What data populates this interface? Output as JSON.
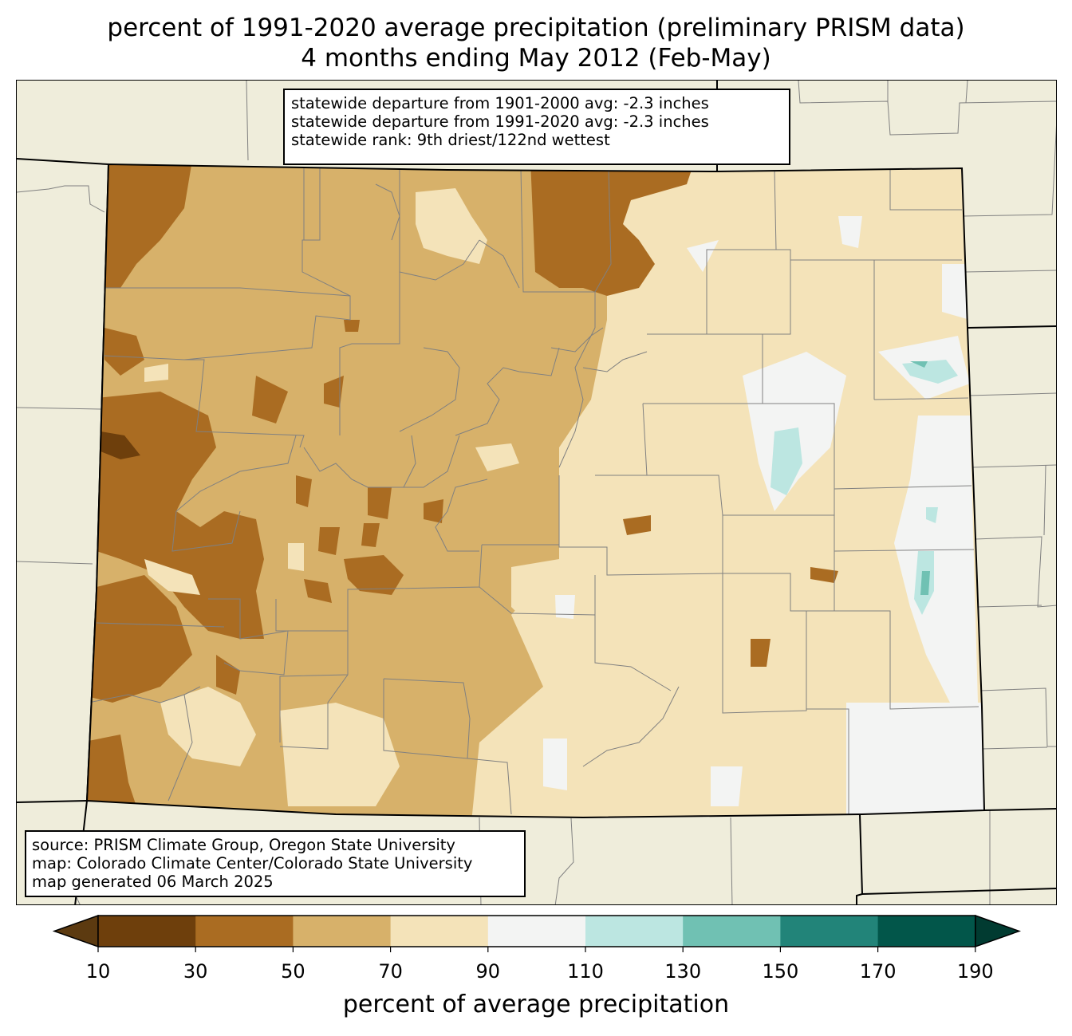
{
  "title_line1": "percent of 1991-2020 average precipitation (preliminary PRISM data)",
  "title_line2": "4 months ending May 2012 (Feb-May)",
  "stats": {
    "line1": "statewide departure from 1901-2000 avg: -2.3 inches",
    "line2": "statewide departure from 1991-2020 avg: -2.3 inches",
    "line3": "statewide rank: 9th driest/122nd wettest"
  },
  "source": {
    "line1": "source: PRISM Climate Group, Oregon State University",
    "line2": "map: Colorado Climate Center/Colorado State University",
    "line3": "map generated 06 March 2025"
  },
  "colorbar": {
    "label": "percent of average precipitation",
    "ticks": [
      "10",
      "30",
      "50",
      "70",
      "90",
      "110",
      "130",
      "150",
      "170",
      "190"
    ],
    "colors": [
      "#5c3a10",
      "#6e3f0c",
      "#aa6c22",
      "#d7b16a",
      "#f4e3b9",
      "#f3f4f3",
      "#bce6e1",
      "#70c1b3",
      "#228479",
      "#02564a",
      "#013b31"
    ],
    "extend": "both"
  },
  "colors": {
    "background": "#efeddb",
    "state_border": "#000000",
    "county_border": "#808080"
  }
}
